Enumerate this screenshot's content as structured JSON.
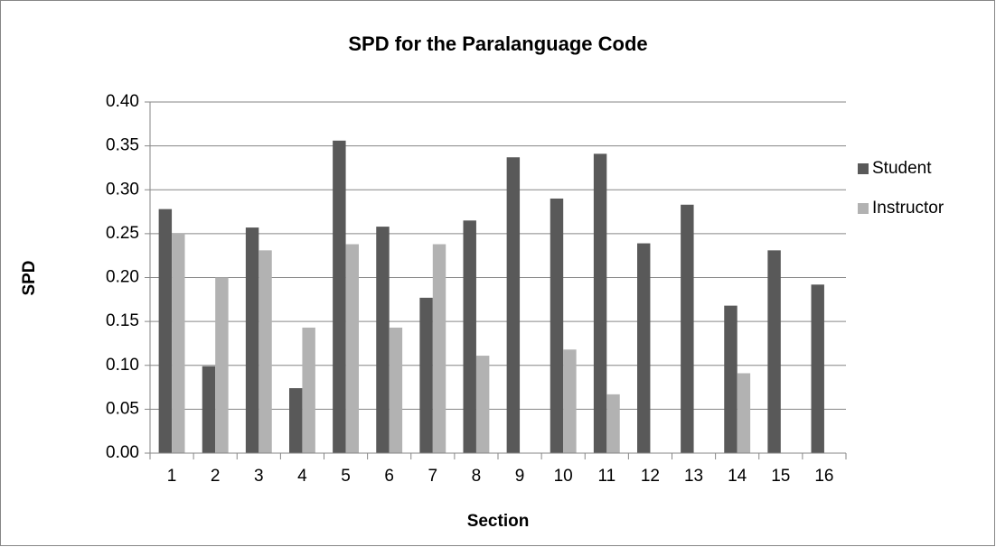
{
  "chart_data": {
    "type": "bar",
    "title": "SPD for the Paralanguage Code",
    "x_label": "Section",
    "y_label": "SPD",
    "categories": [
      "1",
      "2",
      "3",
      "4",
      "5",
      "6",
      "7",
      "8",
      "9",
      "10",
      "11",
      "12",
      "13",
      "14",
      "15",
      "16"
    ],
    "series": [
      {
        "name": "Student",
        "color": "#595959",
        "values": [
          0.278,
          0.099,
          0.257,
          0.074,
          0.356,
          0.258,
          0.177,
          0.265,
          0.337,
          0.29,
          0.341,
          0.239,
          0.283,
          0.168,
          0.231,
          0.192
        ]
      },
      {
        "name": "Instructor",
        "color": "#b2b2b2",
        "values": [
          0.25,
          0.2,
          0.231,
          0.143,
          0.238,
          0.143,
          0.238,
          0.111,
          0,
          0.118,
          0.067,
          0,
          0,
          0.091,
          0,
          0
        ]
      }
    ],
    "ylim": [
      0,
      0.4
    ],
    "yticks": [
      {
        "value": 0,
        "label": "0.00"
      },
      {
        "value": 0.05,
        "label": "0.05"
      },
      {
        "value": 0.1,
        "label": "0.10"
      },
      {
        "value": 0.15,
        "label": "0.15"
      },
      {
        "value": 0.2,
        "label": "0.20"
      },
      {
        "value": 0.25,
        "label": "0.25"
      },
      {
        "value": 0.3,
        "label": "0.30"
      },
      {
        "value": 0.35,
        "label": "0.35"
      },
      {
        "value": 0.4,
        "label": "0.40"
      }
    ],
    "grid": true,
    "legend": "right"
  }
}
